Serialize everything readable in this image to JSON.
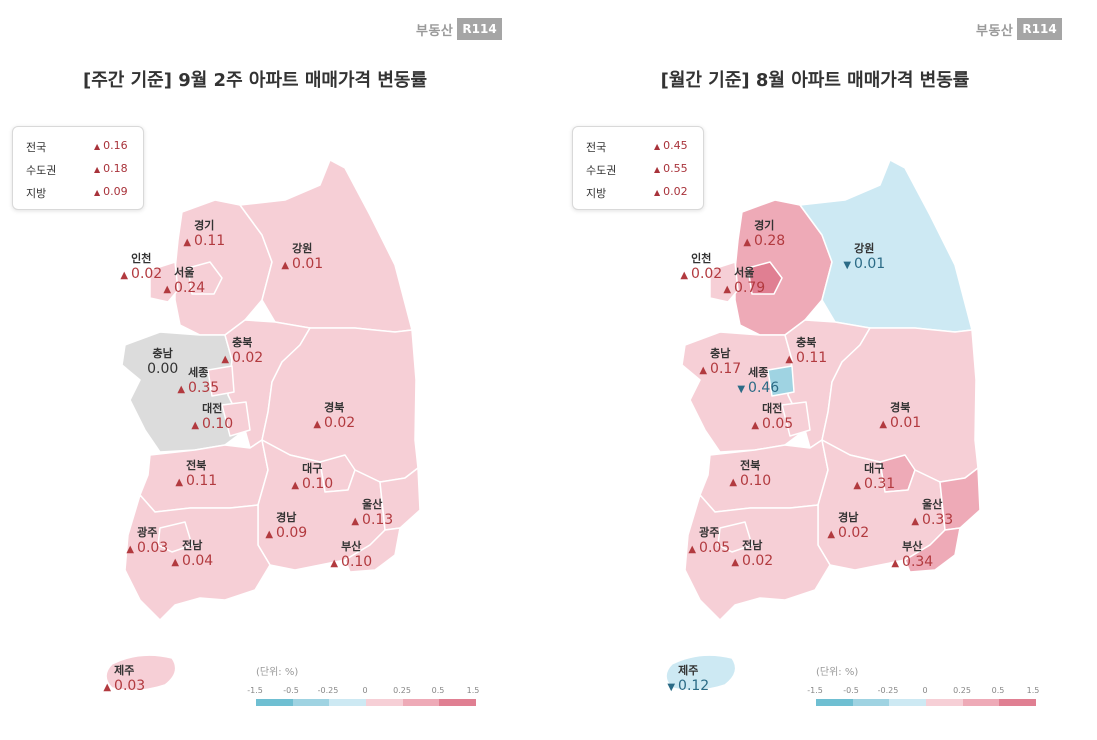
{
  "brand": {
    "logo_text": "부동산",
    "logo_mark": "R114"
  },
  "colors": {
    "up_text": "#b23a3f",
    "down_text": "#2b6b86",
    "neutral_fill": "#dcdcdc",
    "up_light": "#f6cfd6",
    "up_mid": "#eeaab7",
    "up_strong": "#e07f92",
    "down_light": "#cde9f3",
    "down_mid": "#9fd3e2",
    "down_strong": "#6fbfd2"
  },
  "panels": [
    {
      "title": "[주간 기준] 9월 2주 아파트 매매가격 변동률",
      "summary": [
        {
          "name": "전국",
          "value": "0.16"
        },
        {
          "name": "수도권",
          "value": "0.18"
        },
        {
          "name": "지방",
          "value": "0.09"
        }
      ],
      "regions": {
        "gyeonggi": {
          "name": "경기",
          "value": "0.11",
          "direction": "up"
        },
        "incheon": {
          "name": "인천",
          "value": "0.02",
          "direction": "up"
        },
        "seoul": {
          "name": "서울",
          "value": "0.24",
          "direction": "up"
        },
        "gangwon": {
          "name": "강원",
          "value": "0.01",
          "direction": "up"
        },
        "chungnam": {
          "name": "충남",
          "value": "0.00",
          "direction": "flat"
        },
        "chungbuk": {
          "name": "충북",
          "value": "0.02",
          "direction": "up"
        },
        "sejong": {
          "name": "세종",
          "value": "0.35",
          "direction": "up"
        },
        "daejeon": {
          "name": "대전",
          "value": "0.10",
          "direction": "up"
        },
        "gyeongbuk": {
          "name": "경북",
          "value": "0.02",
          "direction": "up"
        },
        "jeonbuk": {
          "name": "전북",
          "value": "0.11",
          "direction": "up"
        },
        "daegu": {
          "name": "대구",
          "value": "0.10",
          "direction": "up"
        },
        "ulsan": {
          "name": "울산",
          "value": "0.13",
          "direction": "up"
        },
        "gyeongnam": {
          "name": "경남",
          "value": "0.09",
          "direction": "up"
        },
        "gwangju": {
          "name": "광주",
          "value": "0.03",
          "direction": "up"
        },
        "jeonnam": {
          "name": "전남",
          "value": "0.04",
          "direction": "up"
        },
        "busan": {
          "name": "부산",
          "value": "0.10",
          "direction": "up"
        },
        "jeju": {
          "name": "제주",
          "value": "0.03",
          "direction": "up"
        }
      },
      "legend": {
        "title": "(단위: %)",
        "ticks": [
          "-1.5",
          "-0.5",
          "-0.25",
          "0",
          "0.25",
          "0.5",
          "1.5"
        ]
      }
    },
    {
      "title": "[월간 기준] 8월 아파트 매매가격 변동률",
      "summary": [
        {
          "name": "전국",
          "value": "0.45"
        },
        {
          "name": "수도권",
          "value": "0.55"
        },
        {
          "name": "지방",
          "value": "0.02"
        }
      ],
      "regions": {
        "gyeonggi": {
          "name": "경기",
          "value": "0.28",
          "direction": "up"
        },
        "incheon": {
          "name": "인천",
          "value": "0.02",
          "direction": "up"
        },
        "seoul": {
          "name": "서울",
          "value": "0.79",
          "direction": "up"
        },
        "gangwon": {
          "name": "강원",
          "value": "0.01",
          "direction": "down"
        },
        "chungnam": {
          "name": "충남",
          "value": "0.17",
          "direction": "up"
        },
        "chungbuk": {
          "name": "충북",
          "value": "0.11",
          "direction": "up"
        },
        "sejong": {
          "name": "세종",
          "value": "0.46",
          "direction": "down"
        },
        "daejeon": {
          "name": "대전",
          "value": "0.05",
          "direction": "up"
        },
        "gyeongbuk": {
          "name": "경북",
          "value": "0.01",
          "direction": "up"
        },
        "jeonbuk": {
          "name": "전북",
          "value": "0.10",
          "direction": "up"
        },
        "daegu": {
          "name": "대구",
          "value": "0.31",
          "direction": "up"
        },
        "ulsan": {
          "name": "울산",
          "value": "0.33",
          "direction": "up"
        },
        "gyeongnam": {
          "name": "경남",
          "value": "0.02",
          "direction": "up"
        },
        "gwangju": {
          "name": "광주",
          "value": "0.05",
          "direction": "up"
        },
        "jeonnam": {
          "name": "전남",
          "value": "0.02",
          "direction": "up"
        },
        "busan": {
          "name": "부산",
          "value": "0.34",
          "direction": "up"
        },
        "jeju": {
          "name": "제주",
          "value": "0.12",
          "direction": "down"
        }
      },
      "legend": {
        "title": "(단위: %)",
        "ticks": [
          "-1.5",
          "-0.5",
          "-0.25",
          "0",
          "0.25",
          "0.5",
          "1.5"
        ]
      }
    }
  ]
}
